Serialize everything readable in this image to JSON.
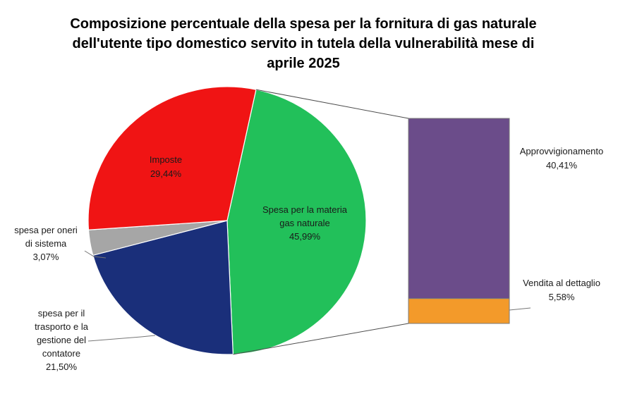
{
  "chart_data": {
    "type": "pie",
    "title": "Composizione percentuale della spesa per la fornitura di gas naturale dell'utente tipo domestico servito in tutela della vulnerabilità mese di aprile 2025",
    "pie": {
      "slices": [
        {
          "label_lines": [
            "Spesa per la materia",
            "gas naturale"
          ],
          "value": 45.99,
          "value_text": "45,99%",
          "color": "#22c05a"
        },
        {
          "label_lines": [
            "spesa per il",
            "trasporto e la",
            "gestione del",
            "contatore"
          ],
          "value": 21.5,
          "value_text": "21,50%",
          "color": "#1a2f7a"
        },
        {
          "label_lines": [
            "spesa per oneri",
            "di sistema"
          ],
          "value": 3.07,
          "value_text": "3,07%",
          "color": "#a6a6a6"
        },
        {
          "label_lines": [
            "Imposte"
          ],
          "value": 29.44,
          "value_text": "29,44%",
          "color": "#f01414"
        }
      ]
    },
    "breakdown": {
      "parent": "Spesa per la materia gas naturale",
      "segments": [
        {
          "label": "Approvvigionamento",
          "value": 40.41,
          "value_text": "40,41%",
          "color": "#6b4c8a"
        },
        {
          "label": "Vendita al dettaglio",
          "value": 5.58,
          "value_text": "5,58%",
          "color": "#f39a2a"
        }
      ]
    }
  }
}
